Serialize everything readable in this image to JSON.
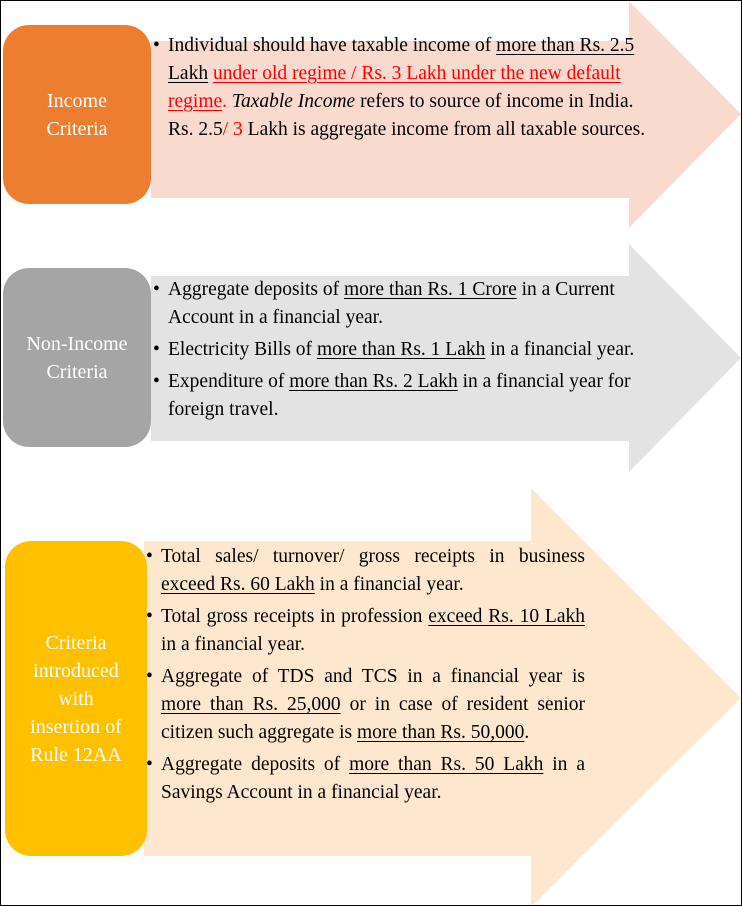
{
  "colors": {
    "income_pill": "#ED7D31",
    "income_arrow": "#F8DACF",
    "nonincome_pill": "#A5A5A5",
    "nonincome_arrow": "#E3E3E3",
    "rule_pill": "#FFC000",
    "rule_arrow": "#FDE7CE",
    "highlight_text": "#FF0000"
  },
  "sections": [
    {
      "label_lines": [
        "Income",
        "Criteria"
      ],
      "bullets": [
        [
          {
            "t": "Individual should have taxable income of ",
            "s": ""
          },
          {
            "t": "more than Rs. 2.5 Lakh",
            "s": "u"
          },
          {
            "t": " ",
            "s": ""
          },
          {
            "t": "under old regime / Rs. 3 Lakh under the new default regime",
            "s": "u red"
          },
          {
            "t": ". ",
            "s": "red"
          },
          {
            "t": "Taxable Income",
            "s": "i"
          },
          {
            "t": " refers to source of income in India. Rs. 2.5",
            "s": ""
          },
          {
            "t": "/ 3",
            "s": "red"
          },
          {
            "t": " Lakh is aggregate income from all taxable sources.",
            "s": ""
          }
        ]
      ]
    },
    {
      "label_lines": [
        "Non-Income",
        "Criteria"
      ],
      "bullets": [
        [
          {
            "t": "Aggregate deposits of ",
            "s": ""
          },
          {
            "t": "more than Rs. 1 Crore",
            "s": "u"
          },
          {
            "t": " in a Current Account in a financial year.",
            "s": ""
          }
        ],
        [
          {
            "t": "Electricity Bills of ",
            "s": ""
          },
          {
            "t": "more than Rs. 1 Lakh",
            "s": "u"
          },
          {
            "t": " in a financial year.",
            "s": ""
          }
        ],
        [
          {
            "t": "Expenditure of ",
            "s": ""
          },
          {
            "t": "more than Rs. 2 Lakh",
            "s": "u"
          },
          {
            "t": " in a financial year for foreign travel.",
            "s": ""
          }
        ]
      ]
    },
    {
      "label_lines": [
        "Criteria",
        "introduced",
        "with",
        "insertion of",
        "Rule 12AA"
      ],
      "bullets": [
        [
          {
            "t": "Total sales/ turnover/ gross receipts in business ",
            "s": ""
          },
          {
            "t": "exceed Rs. 60 Lakh",
            "s": "u"
          },
          {
            "t": " in a financial year.",
            "s": ""
          }
        ],
        [
          {
            "t": "Total gross receipts in profession ",
            "s": ""
          },
          {
            "t": "exceed Rs. 10 Lakh",
            "s": "u"
          },
          {
            "t": " in a financial year.",
            "s": ""
          }
        ],
        [
          {
            "t": "Aggregate of TDS and TCS in a financial year is ",
            "s": ""
          },
          {
            "t": "more than Rs. 25,000",
            "s": "u"
          },
          {
            "t": " or in case of resident senior citizen such aggregate is ",
            "s": ""
          },
          {
            "t": "more than Rs. 50,000",
            "s": "u"
          },
          {
            "t": ".",
            "s": ""
          }
        ],
        [
          {
            "t": "Aggregate deposits of ",
            "s": ""
          },
          {
            "t": "more than Rs. 50 Lakh",
            "s": "u"
          },
          {
            "t": " in a Savings Account in a financial year.",
            "s": ""
          }
        ]
      ]
    }
  ]
}
